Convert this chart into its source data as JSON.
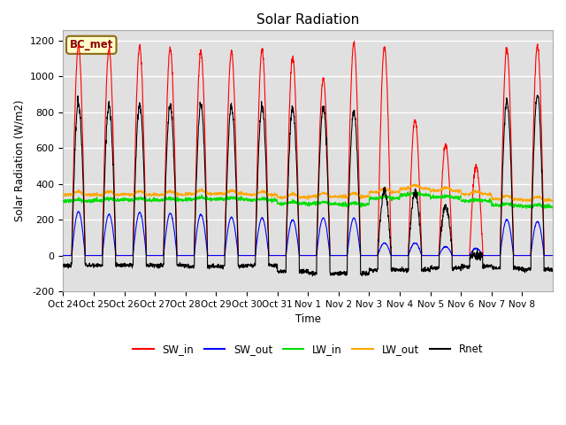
{
  "title": "Solar Radiation",
  "ylabel": "Solar Radiation (W/m2)",
  "xlabel": "Time",
  "ylim": [
    -200,
    1260
  ],
  "yticks": [
    -200,
    0,
    200,
    400,
    600,
    800,
    1000,
    1200
  ],
  "label_box": "BC_met",
  "line_colors": {
    "SW_in": "#ff0000",
    "SW_out": "#0000ff",
    "LW_in": "#00dd00",
    "LW_out": "#ffa500",
    "Rnet": "#000000"
  },
  "legend_labels": [
    "SW_in",
    "SW_out",
    "LW_in",
    "LW_out",
    "Rnet"
  ],
  "xtick_labels": [
    "Oct 24",
    "Oct 25",
    "Oct 26",
    "Oct 27",
    "Oct 28",
    "Oct 29",
    "Oct 30",
    "Oct 31",
    "Nov 1",
    "Nov 2",
    "Nov 3",
    "Nov 4",
    "Nov 5",
    "Nov 6",
    "Nov 7",
    "Nov 8"
  ],
  "plot_bg": "#e0e0e0",
  "n_days": 16,
  "pts_per_day": 144,
  "SW_in_peaks": [
    1170,
    1155,
    1165,
    1155,
    1145,
    1145,
    1150,
    1110,
    990,
    1190,
    1165,
    760,
    620,
    500,
    1155,
    1175
  ],
  "SW_out_peaks": [
    245,
    230,
    240,
    235,
    230,
    215,
    210,
    200,
    210,
    210,
    70,
    70,
    50,
    40,
    200,
    190
  ],
  "LW_in_base": [
    305,
    310,
    310,
    310,
    315,
    315,
    310,
    290,
    290,
    285,
    320,
    340,
    325,
    305,
    280,
    275
  ],
  "LW_out_base": [
    340,
    340,
    340,
    340,
    345,
    345,
    340,
    325,
    330,
    330,
    355,
    375,
    362,
    342,
    315,
    310
  ],
  "Rnet_peaks": [
    855,
    840,
    845,
    840,
    840,
    835,
    835,
    820,
    825,
    800,
    360,
    355,
    280,
    0,
    865,
    900
  ],
  "Rnet_night": [
    -55,
    -55,
    -55,
    -55,
    -60,
    -60,
    -55,
    -90,
    -100,
    -100,
    -80,
    -80,
    -70,
    -60,
    -70,
    -80
  ]
}
